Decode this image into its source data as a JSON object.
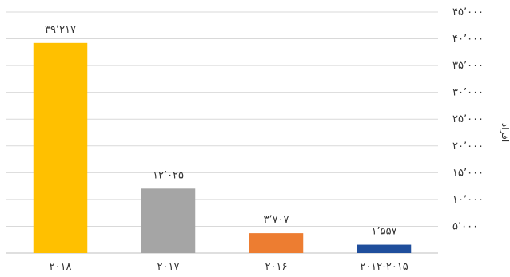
{
  "chart_data": {
    "type": "bar",
    "categories": [
      "2018",
      "2017",
      "2016",
      "2012-2015"
    ],
    "category_labels": [
      "۲۰۱۸",
      "۲۰۱۷",
      "۲۰۱۶",
      "۲۰۱۲-۲۰۱۵"
    ],
    "values": [
      39217,
      12025,
      3707,
      1557
    ],
    "value_labels": [
      "۳۹٬۲۱۷",
      "۱۲٬۰۲۵",
      "۳٬۷۰۷",
      "۱٬۵۵۷"
    ],
    "colors": [
      "#FFC000",
      "#A5A5A5",
      "#ED7D31",
      "#1F4E9C"
    ],
    "ylim": [
      0,
      45000
    ],
    "yticks": [
      0,
      5000,
      10000,
      15000,
      20000,
      25000,
      30000,
      35000,
      40000,
      45000
    ],
    "ytick_labels": [
      "",
      "۵٬۰۰۰",
      "۱۰٬۰۰۰",
      "۱۵٬۰۰۰",
      "۲۰٬۰۰۰",
      "۲۵٬۰۰۰",
      "۳۰٬۰۰۰",
      "۳۵٬۰۰۰",
      "۴۰٬۰۰۰",
      "۴۵٬۰۰۰"
    ],
    "ylabel": "افراد",
    "y_axis_side": "right",
    "grid": true,
    "title": "",
    "xlabel": ""
  }
}
